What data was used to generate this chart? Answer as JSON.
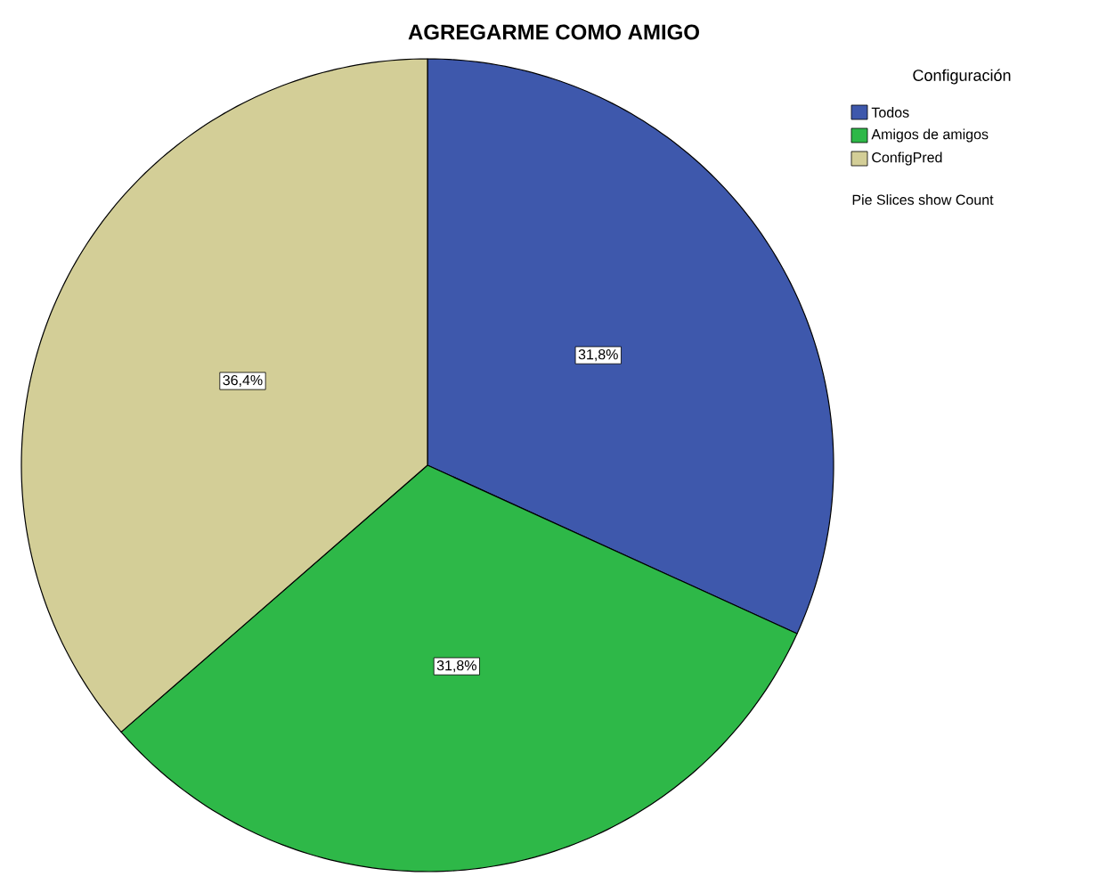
{
  "chart_data": {
    "type": "pie",
    "title": "AGREGARME COMO AMIGO",
    "legend_title": "Configuración",
    "categories": [
      "Todos",
      "Amigos de amigos",
      "ConfigPred"
    ],
    "values": [
      31.8,
      31.8,
      36.4
    ],
    "value_labels": [
      "31,8%",
      "31,8%",
      "36,4%"
    ],
    "colors": [
      "#3e58ac",
      "#2eb848",
      "#d3ce97"
    ],
    "legend": "top right",
    "annotations": [
      "Pie Slices show Count"
    ]
  }
}
